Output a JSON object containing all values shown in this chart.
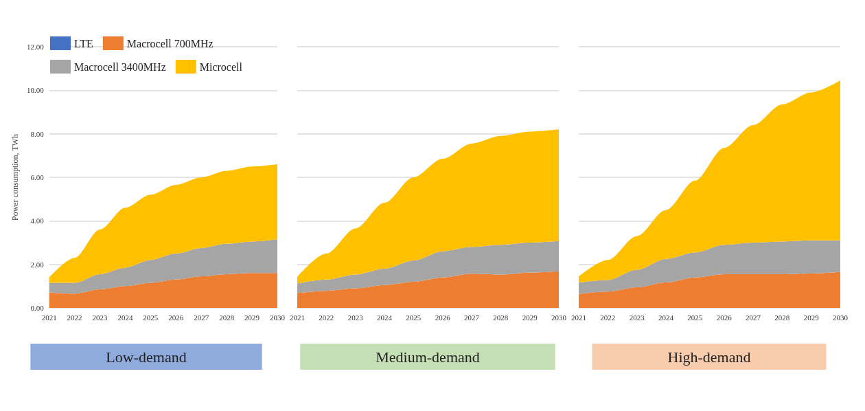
{
  "chart_data": [
    {
      "type": "area",
      "title": "Low-demand",
      "ylabel": "Power consumption, TWh",
      "stacked": true,
      "legend": "top",
      "grid": "y",
      "categories": [
        "2021",
        "2022",
        "2023",
        "2024",
        "2025",
        "2026",
        "2027",
        "2028",
        "2029",
        "2030"
      ],
      "ylim": [
        0,
        12
      ],
      "yticks": [
        {
          "value": 0,
          "label": "0.00"
        },
        {
          "value": 2,
          "label": "2.00"
        },
        {
          "value": 4,
          "label": "4.00"
        },
        {
          "value": 6,
          "label": "6.00"
        },
        {
          "value": 8,
          "label": "8.00"
        },
        {
          "value": 10,
          "label": "10.00"
        },
        {
          "value": 12,
          "label": "12.00"
        }
      ],
      "series": [
        {
          "name": "LTE",
          "color": "#4472c4",
          "values": [
            null,
            null,
            null,
            null,
            null,
            null,
            null,
            null,
            null,
            null
          ]
        },
        {
          "name": "Macrocell 700MHz",
          "color": "#ed7d31",
          "values": [
            0.7,
            0.65,
            0.85,
            1.0,
            1.15,
            1.3,
            1.45,
            1.55,
            1.6,
            1.6
          ]
        },
        {
          "name": "Macrocell 3400MHz",
          "color": "#a5a5a5",
          "values": [
            0.45,
            0.5,
            0.7,
            0.85,
            1.05,
            1.2,
            1.3,
            1.4,
            1.45,
            1.55
          ]
        },
        {
          "name": "Microcell",
          "color": "#ffc000",
          "values": [
            0.25,
            1.15,
            2.05,
            2.75,
            3.0,
            3.15,
            3.25,
            3.35,
            3.45,
            3.45
          ]
        }
      ]
    },
    {
      "type": "area",
      "title": "Medium-demand",
      "stacked": true,
      "grid": "y",
      "tick_labels": "x",
      "categories": [
        "2021",
        "2022",
        "2023",
        "2024",
        "2025",
        "2026",
        "2027",
        "2028",
        "2029",
        "2030"
      ],
      "ylim": [
        0,
        12
      ],
      "yticks": [
        0,
        2,
        4,
        6,
        8,
        10,
        12
      ],
      "series": [
        {
          "color": "#ed7d31",
          "values": [
            0.68,
            0.78,
            0.9,
            1.05,
            1.2,
            1.4,
            1.57,
            1.53,
            1.62,
            1.68
          ]
        },
        {
          "color": "#a5a5a5",
          "values": [
            0.44,
            0.52,
            0.63,
            0.75,
            0.98,
            1.2,
            1.23,
            1.37,
            1.38,
            1.39
          ]
        },
        {
          "color": "#ffc000",
          "values": [
            0.3,
            1.2,
            2.12,
            3.03,
            3.82,
            4.25,
            4.75,
            5.0,
            5.1,
            5.13
          ]
        }
      ]
    },
    {
      "type": "area",
      "title": "High-demand",
      "stacked": true,
      "grid": "y",
      "tick_labels": "x",
      "categories": [
        "2021",
        "2022",
        "2023",
        "2024",
        "2025",
        "2026",
        "2027",
        "2028",
        "2029",
        "2030"
      ],
      "ylim": [
        0,
        12
      ],
      "yticks": [
        0,
        2,
        4,
        6,
        8,
        10,
        12
      ],
      "series": [
        {
          "color": "#ed7d31",
          "values": [
            0.64,
            0.75,
            0.95,
            1.17,
            1.4,
            1.55,
            1.55,
            1.55,
            1.58,
            1.65
          ]
        },
        {
          "color": "#a5a5a5",
          "values": [
            0.53,
            0.53,
            0.8,
            1.08,
            1.15,
            1.35,
            1.45,
            1.5,
            1.52,
            1.45
          ]
        },
        {
          "color": "#ffc000",
          "values": [
            0.27,
            0.92,
            1.55,
            2.25,
            3.3,
            4.45,
            5.4,
            6.3,
            6.8,
            7.35
          ]
        }
      ]
    }
  ]
}
